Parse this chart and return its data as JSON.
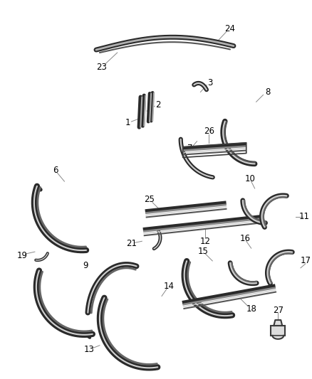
{
  "background_color": "#ffffff",
  "line_color": "#606060",
  "line_color2": "#999999",
  "label_color": "#000000",
  "fig_w": 4.38,
  "fig_h": 5.33,
  "dpi": 100
}
